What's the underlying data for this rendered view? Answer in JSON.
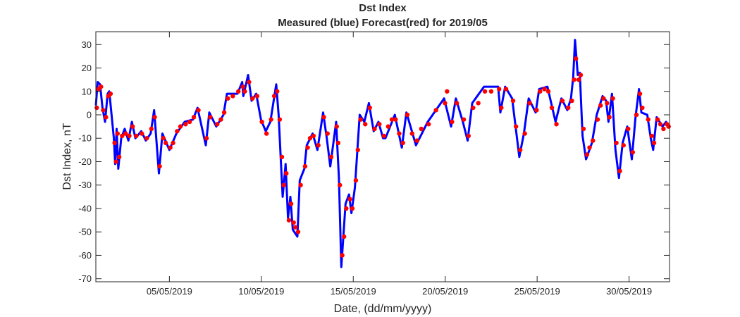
{
  "chart_data": {
    "type": "line",
    "title": "Dst Index",
    "subtitle": "Measured (blue) Forecast(red) for 2019/05",
    "xlabel": "Date, (dd/mm/yyyy)",
    "ylabel": "Dst Index, nT",
    "x_units": "days since 01/05/2019 00:00",
    "xlim": [
      0,
      31.2
    ],
    "ylim": [
      -71.3,
      35.5
    ],
    "grid": false,
    "yticks": [
      -70,
      -60,
      -50,
      -40,
      -30,
      -20,
      -10,
      0,
      10,
      20,
      30
    ],
    "xticks": [
      {
        "value": 4,
        "label": "05/05/2019"
      },
      {
        "value": 9,
        "label": "10/05/2019"
      },
      {
        "value": 14,
        "label": "15/05/2019"
      },
      {
        "value": 19,
        "label": "20/05/2019"
      },
      {
        "value": 24,
        "label": "25/05/2019"
      },
      {
        "value": 29,
        "label": "30/05/2019"
      }
    ],
    "series": [
      {
        "name": "Measured",
        "color": "#0000ff",
        "style": "line",
        "points": [
          [
            0,
            4
          ],
          [
            0.1,
            14
          ],
          [
            0.23,
            13
          ],
          [
            0.36,
            3
          ],
          [
            0.5,
            -3
          ],
          [
            0.64,
            9
          ],
          [
            0.73,
            10
          ],
          [
            0.98,
            -10
          ],
          [
            1.05,
            -21
          ],
          [
            1.13,
            -6
          ],
          [
            1.22,
            -23
          ],
          [
            1.38,
            -10
          ],
          [
            1.57,
            -6
          ],
          [
            1.77,
            -11
          ],
          [
            1.96,
            -3
          ],
          [
            2.15,
            -10
          ],
          [
            2.47,
            -7
          ],
          [
            2.72,
            -11
          ],
          [
            2.98,
            -8
          ],
          [
            3.17,
            2
          ],
          [
            3.43,
            -25
          ],
          [
            3.62,
            -8
          ],
          [
            4.0,
            -15
          ],
          [
            4.38,
            -8
          ],
          [
            4.83,
            -3
          ],
          [
            5.28,
            -2
          ],
          [
            5.53,
            3
          ],
          [
            5.98,
            -13
          ],
          [
            6.17,
            1
          ],
          [
            6.55,
            -5
          ],
          [
            6.94,
            0
          ],
          [
            7.13,
            9
          ],
          [
            7.7,
            9
          ],
          [
            7.96,
            14
          ],
          [
            8.02,
            8
          ],
          [
            8.28,
            17
          ],
          [
            8.47,
            6
          ],
          [
            8.72,
            9
          ],
          [
            8.98,
            -2
          ],
          [
            9.24,
            -7
          ],
          [
            9.49,
            -3
          ],
          [
            9.81,
            13
          ],
          [
            9.94,
            0
          ],
          [
            10.07,
            -21
          ],
          [
            10.16,
            -35
          ],
          [
            10.32,
            -21
          ],
          [
            10.45,
            -44
          ],
          [
            10.58,
            -35
          ],
          [
            10.71,
            -49
          ],
          [
            10.96,
            -52
          ],
          [
            11.09,
            -28
          ],
          [
            11.34,
            -23
          ],
          [
            11.47,
            -13
          ],
          [
            11.79,
            -8
          ],
          [
            12.05,
            -15
          ],
          [
            12.36,
            1
          ],
          [
            12.56,
            -10
          ],
          [
            12.75,
            -22
          ],
          [
            13.07,
            -3
          ],
          [
            13.13,
            -13
          ],
          [
            13.22,
            -27
          ],
          [
            13.35,
            -65
          ],
          [
            13.58,
            -38
          ],
          [
            13.77,
            -34
          ],
          [
            13.9,
            -42
          ],
          [
            14.09,
            -31
          ],
          [
            14.35,
            0
          ],
          [
            14.6,
            -3
          ],
          [
            14.85,
            5
          ],
          [
            15.11,
            -7
          ],
          [
            15.37,
            -3
          ],
          [
            15.62,
            -10
          ],
          [
            15.75,
            -10
          ],
          [
            16.26,
            0
          ],
          [
            16.64,
            -14
          ],
          [
            16.89,
            1
          ],
          [
            17.41,
            -13
          ],
          [
            18.05,
            -3
          ],
          [
            18.94,
            7
          ],
          [
            19.32,
            -5
          ],
          [
            19.58,
            7
          ],
          [
            19.96,
            -3
          ],
          [
            20.22,
            -11
          ],
          [
            20.47,
            5
          ],
          [
            21.11,
            12
          ],
          [
            21.88,
            12
          ],
          [
            22.0,
            1
          ],
          [
            22.26,
            12
          ],
          [
            22.64,
            7
          ],
          [
            23.03,
            -18
          ],
          [
            23.28,
            -8
          ],
          [
            23.54,
            7
          ],
          [
            23.92,
            1
          ],
          [
            24.11,
            11
          ],
          [
            24.56,
            12
          ],
          [
            25.0,
            -3
          ],
          [
            25.32,
            7
          ],
          [
            25.64,
            2
          ],
          [
            25.84,
            7
          ],
          [
            25.96,
            16
          ],
          [
            26.06,
            32
          ],
          [
            26.21,
            17
          ],
          [
            26.32,
            18
          ],
          [
            26.47,
            -9
          ],
          [
            26.66,
            -19
          ],
          [
            26.98,
            -12
          ],
          [
            27.24,
            0
          ],
          [
            27.56,
            8
          ],
          [
            27.75,
            6
          ],
          [
            27.88,
            -3
          ],
          [
            28.07,
            9
          ],
          [
            28.26,
            -15
          ],
          [
            28.45,
            -27
          ],
          [
            28.65,
            -12
          ],
          [
            28.9,
            -5
          ],
          [
            29.15,
            -19
          ],
          [
            29.35,
            -1
          ],
          [
            29.54,
            11
          ],
          [
            29.67,
            1
          ],
          [
            29.99,
            0
          ],
          [
            30.18,
            -10
          ],
          [
            30.31,
            -15
          ],
          [
            30.5,
            -1
          ],
          [
            30.82,
            -5
          ],
          [
            31.01,
            -3
          ],
          [
            31.2,
            -5
          ]
        ]
      },
      {
        "name": "Forecast",
        "color": "#ff0000",
        "style": "markers",
        "points": [
          [
            0.05,
            3
          ],
          [
            0.15,
            11
          ],
          [
            0.28,
            12
          ],
          [
            0.4,
            2
          ],
          [
            0.55,
            -1
          ],
          [
            0.68,
            8
          ],
          [
            0.8,
            9
          ],
          [
            1.02,
            -12
          ],
          [
            1.1,
            -20
          ],
          [
            1.18,
            -8
          ],
          [
            1.27,
            -18
          ],
          [
            1.43,
            -9
          ],
          [
            1.62,
            -8
          ],
          [
            1.82,
            -9
          ],
          [
            2.0,
            -5
          ],
          [
            2.2,
            -9
          ],
          [
            2.5,
            -8
          ],
          [
            2.77,
            -10
          ],
          [
            3.02,
            -6
          ],
          [
            3.2,
            -1
          ],
          [
            3.47,
            -22
          ],
          [
            3.67,
            -10
          ],
          [
            3.8,
            -12
          ],
          [
            4.05,
            -14
          ],
          [
            4.2,
            -12
          ],
          [
            4.42,
            -7
          ],
          [
            4.6,
            -5
          ],
          [
            4.88,
            -4
          ],
          [
            5.1,
            -3
          ],
          [
            5.33,
            -1
          ],
          [
            5.58,
            2
          ],
          [
            6.02,
            -10
          ],
          [
            6.22,
            -1
          ],
          [
            6.6,
            -4
          ],
          [
            6.8,
            -2
          ],
          [
            6.98,
            1
          ],
          [
            7.18,
            7
          ],
          [
            7.45,
            8
          ],
          [
            7.75,
            10
          ],
          [
            8.0,
            12
          ],
          [
            8.1,
            10
          ],
          [
            8.33,
            14
          ],
          [
            8.52,
            7
          ],
          [
            8.77,
            8
          ],
          [
            9.03,
            -3
          ],
          [
            9.28,
            -8
          ],
          [
            9.53,
            -2
          ],
          [
            9.7,
            8
          ],
          [
            9.86,
            10
          ],
          [
            10.0,
            -2
          ],
          [
            10.12,
            -18
          ],
          [
            10.22,
            -30
          ],
          [
            10.36,
            -25
          ],
          [
            10.5,
            -45
          ],
          [
            10.62,
            -38
          ],
          [
            10.76,
            -46
          ],
          [
            10.85,
            -48
          ],
          [
            11.0,
            -50
          ],
          [
            11.14,
            -30
          ],
          [
            11.38,
            -22
          ],
          [
            11.52,
            -14
          ],
          [
            11.65,
            -10
          ],
          [
            11.84,
            -9
          ],
          [
            12.1,
            -13
          ],
          [
            12.4,
            -1
          ],
          [
            12.6,
            -8
          ],
          [
            12.8,
            -18
          ],
          [
            13.1,
            -5
          ],
          [
            13.18,
            -12
          ],
          [
            13.27,
            -30
          ],
          [
            13.4,
            -60
          ],
          [
            13.5,
            -52
          ],
          [
            13.62,
            -40
          ],
          [
            13.82,
            -36
          ],
          [
            13.95,
            -40
          ],
          [
            14.14,
            -28
          ],
          [
            14.25,
            -15
          ],
          [
            14.4,
            -2
          ],
          [
            14.65,
            -4
          ],
          [
            14.9,
            3
          ],
          [
            15.16,
            -6
          ],
          [
            15.42,
            -4
          ],
          [
            15.67,
            -9
          ],
          [
            15.9,
            -5
          ],
          [
            16.1,
            -2
          ],
          [
            16.3,
            -2
          ],
          [
            16.5,
            -8
          ],
          [
            16.7,
            -12
          ],
          [
            16.94,
            0
          ],
          [
            17.2,
            -8
          ],
          [
            17.46,
            -11
          ],
          [
            17.7,
            -6
          ],
          [
            18.1,
            -4
          ],
          [
            18.5,
            2
          ],
          [
            18.99,
            5
          ],
          [
            19.1,
            10
          ],
          [
            19.37,
            -3
          ],
          [
            19.63,
            5
          ],
          [
            20.01,
            -2
          ],
          [
            20.27,
            -9
          ],
          [
            20.52,
            3
          ],
          [
            20.8,
            5
          ],
          [
            21.16,
            10
          ],
          [
            21.5,
            10
          ],
          [
            21.93,
            11
          ],
          [
            22.05,
            3
          ],
          [
            22.31,
            11
          ],
          [
            22.69,
            6
          ],
          [
            22.85,
            -5
          ],
          [
            23.08,
            -15
          ],
          [
            23.33,
            -8
          ],
          [
            23.59,
            5
          ],
          [
            23.97,
            2
          ],
          [
            24.16,
            10
          ],
          [
            24.4,
            11
          ],
          [
            24.61,
            10
          ],
          [
            24.8,
            3
          ],
          [
            25.05,
            -4
          ],
          [
            25.37,
            6
          ],
          [
            25.69,
            3
          ],
          [
            25.89,
            6
          ],
          [
            26.01,
            15
          ],
          [
            26.11,
            24
          ],
          [
            26.26,
            15
          ],
          [
            26.37,
            17
          ],
          [
            26.52,
            -6
          ],
          [
            26.71,
            -17
          ],
          [
            26.85,
            -14
          ],
          [
            27.03,
            -11
          ],
          [
            27.29,
            -2
          ],
          [
            27.45,
            4
          ],
          [
            27.61,
            7
          ],
          [
            27.8,
            5
          ],
          [
            27.93,
            -1
          ],
          [
            28.12,
            7
          ],
          [
            28.31,
            -12
          ],
          [
            28.5,
            -24
          ],
          [
            28.7,
            -13
          ],
          [
            28.95,
            -6
          ],
          [
            29.2,
            -16
          ],
          [
            29.4,
            0
          ],
          [
            29.59,
            9
          ],
          [
            29.72,
            3
          ],
          [
            30.04,
            -2
          ],
          [
            30.23,
            -9
          ],
          [
            30.36,
            -12
          ],
          [
            30.55,
            -2
          ],
          [
            30.7,
            -4
          ],
          [
            30.87,
            -6
          ],
          [
            31.06,
            -4
          ],
          [
            31.15,
            -5
          ]
        ]
      }
    ]
  }
}
